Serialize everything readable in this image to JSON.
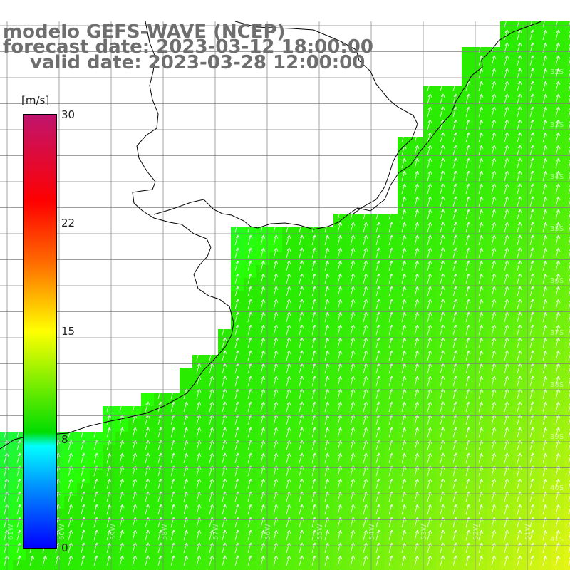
{
  "header": {
    "model": "modelo GEFS-WAVE (NCEP)",
    "forecast": "forecast date: 2023-03-12 18:00:00",
    "valid": "valid date: 2023-03-28 12:00:00"
  },
  "colorbar": {
    "unit": "[m/s]",
    "ticks": [
      "30",
      "22",
      "15",
      "8",
      "0"
    ],
    "stops": [
      {
        "value": 30,
        "color": "#c0146e"
      },
      {
        "value": 22,
        "color": "#ff3300"
      },
      {
        "value": 15,
        "color": "#ffff00"
      },
      {
        "value": 8,
        "color": "#00ffff"
      },
      {
        "value": 0,
        "color": "#0000ff"
      }
    ]
  },
  "map": {
    "lon_labels": [
      "61W",
      "60W",
      "59W",
      "58W",
      "57W",
      "56W",
      "55W",
      "54W",
      "53W",
      "52W",
      "51W"
    ],
    "lat_labels": [
      "32S",
      "33S",
      "34S",
      "35S",
      "36S",
      "37S",
      "38S",
      "39S",
      "40S",
      "41S"
    ],
    "field_colors": {
      "land": "#ffffff",
      "coast": "#000000",
      "grid": "#808080",
      "arrow": "#ffffff"
    },
    "wind_direction": "north-northeast"
  }
}
